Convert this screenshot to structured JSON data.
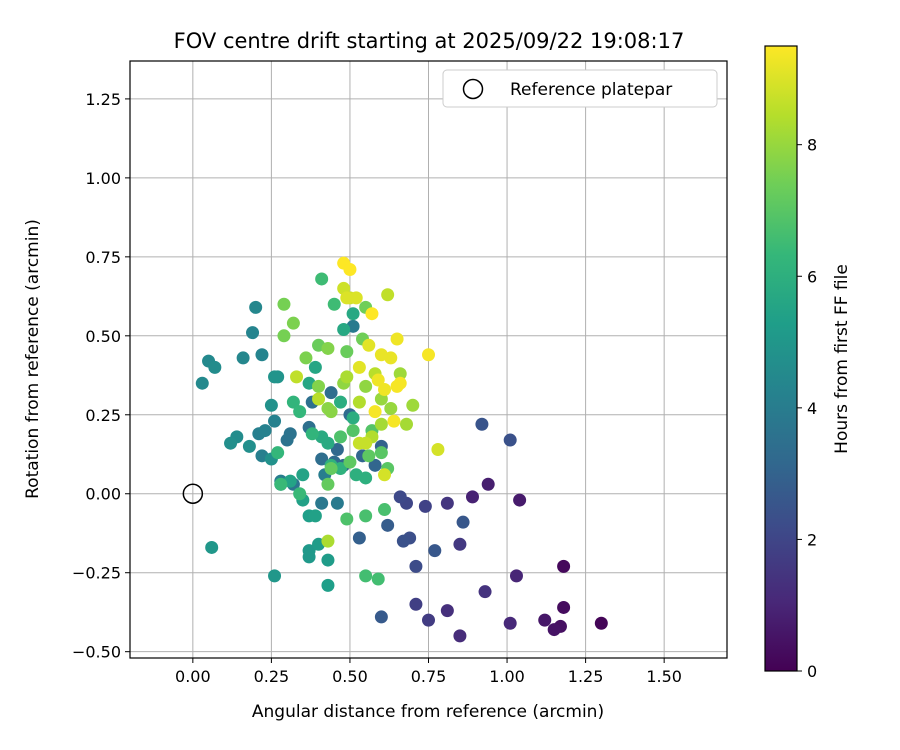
{
  "chart_data": {
    "type": "scatter",
    "title": "FOV centre drift starting at 2025/09/22 19:08:17",
    "xlabel": "Angular distance from reference (arcmin)",
    "ylabel": "Rotation from reference (arcmin)",
    "xlim": [
      -0.2,
      1.7
    ],
    "ylim": [
      -0.52,
      1.37
    ],
    "xticks": [
      0.0,
      0.25,
      0.5,
      0.75,
      1.0,
      1.25,
      1.5
    ],
    "xtick_labels": [
      "0.00",
      "0.25",
      "0.50",
      "0.75",
      "1.00",
      "1.25",
      "1.50"
    ],
    "yticks": [
      -0.5,
      -0.25,
      0.0,
      0.25,
      0.5,
      0.75,
      1.0,
      1.25
    ],
    "ytick_labels": [
      "−0.50",
      "−0.25",
      "0.00",
      "0.25",
      "0.50",
      "0.75",
      "1.00",
      "1.25"
    ],
    "grid": true,
    "legend": {
      "position": "top-right",
      "label": "Reference platepar",
      "marker": "open-circle"
    },
    "reference_point": {
      "x": 0.0,
      "y": 0.0
    },
    "colorbar": {
      "label": "Hours from first FF file",
      "min": 0,
      "max": 9.5,
      "ticks": [
        0,
        2,
        4,
        6,
        8
      ],
      "tick_labels": [
        "0",
        "2",
        "4",
        "6",
        "8"
      ],
      "colormap": "viridis",
      "colors": [
        "#440154",
        "#482878",
        "#3e4989",
        "#31688e",
        "#26828e",
        "#1f9e89",
        "#35b779",
        "#6ece58",
        "#b5de2b",
        "#fde725"
      ]
    },
    "points": [
      {
        "x": 1.3,
        "y": -0.41,
        "h": 0.1
      },
      {
        "x": 1.18,
        "y": -0.23,
        "h": 0.2
      },
      {
        "x": 1.18,
        "y": -0.36,
        "h": 0.3
      },
      {
        "x": 1.17,
        "y": -0.42,
        "h": 0.4
      },
      {
        "x": 1.15,
        "y": -0.43,
        "h": 0.5
      },
      {
        "x": 1.12,
        "y": -0.4,
        "h": 0.6
      },
      {
        "x": 1.04,
        "y": -0.02,
        "h": 0.7
      },
      {
        "x": 0.94,
        "y": 0.03,
        "h": 0.8
      },
      {
        "x": 0.89,
        "y": -0.01,
        "h": 0.9
      },
      {
        "x": 1.03,
        "y": -0.26,
        "h": 1.0
      },
      {
        "x": 1.01,
        "y": -0.41,
        "h": 1.1
      },
      {
        "x": 0.85,
        "y": -0.45,
        "h": 1.2
      },
      {
        "x": 0.81,
        "y": -0.37,
        "h": 1.3
      },
      {
        "x": 0.93,
        "y": -0.31,
        "h": 1.4
      },
      {
        "x": 0.81,
        "y": -0.03,
        "h": 1.5
      },
      {
        "x": 0.85,
        "y": -0.16,
        "h": 1.6
      },
      {
        "x": 0.75,
        "y": -0.4,
        "h": 1.7
      },
      {
        "x": 0.71,
        "y": -0.35,
        "h": 1.8
      },
      {
        "x": 0.74,
        "y": -0.04,
        "h": 1.9
      },
      {
        "x": 0.68,
        "y": -0.03,
        "h": 2.0
      },
      {
        "x": 0.66,
        "y": -0.01,
        "h": 2.1
      },
      {
        "x": 0.71,
        "y": -0.23,
        "h": 2.2
      },
      {
        "x": 0.69,
        "y": -0.14,
        "h": 2.3
      },
      {
        "x": 0.67,
        "y": -0.15,
        "h": 2.4
      },
      {
        "x": 1.01,
        "y": 0.17,
        "h": 2.4
      },
      {
        "x": 0.92,
        "y": 0.22,
        "h": 2.5
      },
      {
        "x": 0.86,
        "y": -0.09,
        "h": 2.6
      },
      {
        "x": 0.77,
        "y": -0.18,
        "h": 2.6
      },
      {
        "x": 0.6,
        "y": -0.39,
        "h": 2.7
      },
      {
        "x": 0.62,
        "y": -0.1,
        "h": 2.8
      },
      {
        "x": 0.53,
        "y": -0.14,
        "h": 2.9
      },
      {
        "x": 0.6,
        "y": 0.15,
        "h": 3.0
      },
      {
        "x": 0.58,
        "y": 0.09,
        "h": 3.1
      },
      {
        "x": 0.54,
        "y": 0.12,
        "h": 3.1
      },
      {
        "x": 0.48,
        "y": 0.09,
        "h": 3.2
      },
      {
        "x": 0.46,
        "y": 0.14,
        "h": 3.2
      },
      {
        "x": 0.5,
        "y": 0.25,
        "h": 3.3
      },
      {
        "x": 0.45,
        "y": 0.1,
        "h": 3.3
      },
      {
        "x": 0.44,
        "y": 0.32,
        "h": 3.4
      },
      {
        "x": 0.41,
        "y": 0.11,
        "h": 3.4
      },
      {
        "x": 0.38,
        "y": 0.29,
        "h": 3.5
      },
      {
        "x": 0.37,
        "y": 0.21,
        "h": 3.5
      },
      {
        "x": 0.3,
        "y": 0.17,
        "h": 3.6
      },
      {
        "x": 0.31,
        "y": 0.19,
        "h": 3.6
      },
      {
        "x": 0.28,
        "y": 0.03,
        "h": 3.7
      },
      {
        "x": 0.32,
        "y": 0.03,
        "h": 3.7
      },
      {
        "x": 0.41,
        "y": -0.03,
        "h": 3.8
      },
      {
        "x": 0.46,
        "y": -0.03,
        "h": 3.9
      },
      {
        "x": 0.51,
        "y": 0.53,
        "h": 3.9
      },
      {
        "x": 0.42,
        "y": 0.06,
        "h": 4.0
      },
      {
        "x": 0.28,
        "y": 0.04,
        "h": 4.0
      },
      {
        "x": 0.22,
        "y": 0.12,
        "h": 4.1
      },
      {
        "x": 0.21,
        "y": 0.19,
        "h": 4.1
      },
      {
        "x": 0.23,
        "y": 0.2,
        "h": 4.2
      },
      {
        "x": 0.26,
        "y": 0.23,
        "h": 4.2
      },
      {
        "x": 0.22,
        "y": 0.44,
        "h": 4.3
      },
      {
        "x": 0.19,
        "y": 0.51,
        "h": 4.3
      },
      {
        "x": 0.2,
        "y": 0.59,
        "h": 4.4
      },
      {
        "x": 0.16,
        "y": 0.43,
        "h": 4.4
      },
      {
        "x": 0.05,
        "y": 0.42,
        "h": 4.5
      },
      {
        "x": 0.03,
        "y": 0.35,
        "h": 4.5
      },
      {
        "x": 0.07,
        "y": 0.4,
        "h": 4.6
      },
      {
        "x": 0.14,
        "y": 0.18,
        "h": 4.6
      },
      {
        "x": 0.12,
        "y": 0.16,
        "h": 4.7
      },
      {
        "x": 0.18,
        "y": 0.15,
        "h": 4.7
      },
      {
        "x": 0.25,
        "y": 0.11,
        "h": 4.8
      },
      {
        "x": 0.25,
        "y": 0.28,
        "h": 4.8
      },
      {
        "x": 0.27,
        "y": 0.37,
        "h": 4.9
      },
      {
        "x": 0.26,
        "y": 0.37,
        "h": 4.9
      },
      {
        "x": 0.06,
        "y": -0.17,
        "h": 5.0
      },
      {
        "x": 0.26,
        "y": -0.26,
        "h": 5.0
      },
      {
        "x": 0.37,
        "y": -0.18,
        "h": 5.1
      },
      {
        "x": 0.37,
        "y": -0.2,
        "h": 5.1
      },
      {
        "x": 0.4,
        "y": -0.16,
        "h": 5.2
      },
      {
        "x": 0.43,
        "y": -0.21,
        "h": 5.2
      },
      {
        "x": 0.43,
        "y": -0.29,
        "h": 5.3
      },
      {
        "x": 0.37,
        "y": -0.07,
        "h": 5.3
      },
      {
        "x": 0.39,
        "y": -0.07,
        "h": 5.4
      },
      {
        "x": 0.35,
        "y": -0.02,
        "h": 5.4
      },
      {
        "x": 0.35,
        "y": 0.06,
        "h": 5.5
      },
      {
        "x": 0.31,
        "y": 0.04,
        "h": 5.5
      },
      {
        "x": 0.39,
        "y": 0.4,
        "h": 5.6
      },
      {
        "x": 0.37,
        "y": 0.35,
        "h": 5.6
      },
      {
        "x": 0.48,
        "y": 0.52,
        "h": 5.7
      },
      {
        "x": 0.51,
        "y": 0.57,
        "h": 5.7
      },
      {
        "x": 0.41,
        "y": 0.18,
        "h": 5.8
      },
      {
        "x": 0.43,
        "y": 0.16,
        "h": 5.8
      },
      {
        "x": 0.47,
        "y": 0.29,
        "h": 5.9
      },
      {
        "x": 0.51,
        "y": 0.24,
        "h": 5.9
      },
      {
        "x": 0.55,
        "y": 0.05,
        "h": 6.0
      },
      {
        "x": 0.52,
        "y": 0.06,
        "h": 6.0
      },
      {
        "x": 0.47,
        "y": 0.08,
        "h": 6.1
      },
      {
        "x": 0.44,
        "y": 0.09,
        "h": 6.1
      },
      {
        "x": 0.38,
        "y": 0.19,
        "h": 6.2
      },
      {
        "x": 0.32,
        "y": 0.29,
        "h": 6.2
      },
      {
        "x": 0.34,
        "y": 0.26,
        "h": 6.3
      },
      {
        "x": 0.27,
        "y": 0.13,
        "h": 6.3
      },
      {
        "x": 0.28,
        "y": 0.03,
        "h": 6.4
      },
      {
        "x": 0.34,
        "y": 0.0,
        "h": 6.4
      },
      {
        "x": 0.41,
        "y": 0.68,
        "h": 6.5
      },
      {
        "x": 0.45,
        "y": 0.6,
        "h": 6.5
      },
      {
        "x": 0.55,
        "y": -0.26,
        "h": 6.6
      },
      {
        "x": 0.59,
        "y": -0.27,
        "h": 6.6
      },
      {
        "x": 0.61,
        "y": -0.05,
        "h": 6.7
      },
      {
        "x": 0.55,
        "y": -0.07,
        "h": 6.7
      },
      {
        "x": 0.49,
        "y": -0.08,
        "h": 6.8
      },
      {
        "x": 0.47,
        "y": 0.18,
        "h": 6.8
      },
      {
        "x": 0.51,
        "y": 0.2,
        "h": 6.9
      },
      {
        "x": 0.57,
        "y": 0.2,
        "h": 6.9
      },
      {
        "x": 0.62,
        "y": 0.08,
        "h": 7.0
      },
      {
        "x": 0.6,
        "y": 0.13,
        "h": 7.0
      },
      {
        "x": 0.56,
        "y": 0.12,
        "h": 7.1
      },
      {
        "x": 0.5,
        "y": 0.1,
        "h": 7.1
      },
      {
        "x": 0.44,
        "y": 0.08,
        "h": 7.2
      },
      {
        "x": 0.43,
        "y": 0.03,
        "h": 7.2
      },
      {
        "x": 0.4,
        "y": 0.47,
        "h": 7.3
      },
      {
        "x": 0.49,
        "y": 0.45,
        "h": 7.3
      },
      {
        "x": 0.54,
        "y": 0.49,
        "h": 7.4
      },
      {
        "x": 0.55,
        "y": 0.59,
        "h": 7.4
      },
      {
        "x": 0.29,
        "y": 0.6,
        "h": 7.5
      },
      {
        "x": 0.29,
        "y": 0.5,
        "h": 7.5
      },
      {
        "x": 0.32,
        "y": 0.54,
        "h": 7.6
      },
      {
        "x": 0.36,
        "y": 0.43,
        "h": 7.6
      },
      {
        "x": 0.43,
        "y": 0.46,
        "h": 7.7
      },
      {
        "x": 0.4,
        "y": 0.34,
        "h": 7.7
      },
      {
        "x": 0.44,
        "y": 0.26,
        "h": 7.8
      },
      {
        "x": 0.43,
        "y": 0.27,
        "h": 7.8
      },
      {
        "x": 0.48,
        "y": 0.35,
        "h": 7.9
      },
      {
        "x": 0.55,
        "y": 0.34,
        "h": 7.9
      },
      {
        "x": 0.6,
        "y": 0.3,
        "h": 8.0
      },
      {
        "x": 0.63,
        "y": 0.27,
        "h": 8.0
      },
      {
        "x": 0.66,
        "y": 0.38,
        "h": 8.1
      },
      {
        "x": 0.7,
        "y": 0.28,
        "h": 8.1
      },
      {
        "x": 0.68,
        "y": 0.22,
        "h": 8.2
      },
      {
        "x": 0.6,
        "y": 0.22,
        "h": 8.2
      },
      {
        "x": 0.43,
        "y": -0.15,
        "h": 8.3
      },
      {
        "x": 0.49,
        "y": 0.37,
        "h": 8.3
      },
      {
        "x": 0.53,
        "y": 0.29,
        "h": 8.4
      },
      {
        "x": 0.57,
        "y": 0.18,
        "h": 8.4
      },
      {
        "x": 0.58,
        "y": 0.38,
        "h": 8.5
      },
      {
        "x": 0.4,
        "y": 0.3,
        "h": 8.5
      },
      {
        "x": 0.33,
        "y": 0.37,
        "h": 8.6
      },
      {
        "x": 0.62,
        "y": 0.63,
        "h": 8.6
      },
      {
        "x": 0.53,
        "y": 0.16,
        "h": 8.7
      },
      {
        "x": 0.55,
        "y": 0.16,
        "h": 8.7
      },
      {
        "x": 0.5,
        "y": 0.62,
        "h": 8.8
      },
      {
        "x": 0.48,
        "y": 0.65,
        "h": 8.8
      },
      {
        "x": 0.78,
        "y": 0.14,
        "h": 8.9
      },
      {
        "x": 0.61,
        "y": 0.06,
        "h": 8.9
      },
      {
        "x": 0.52,
        "y": 0.62,
        "h": 9.0
      },
      {
        "x": 0.49,
        "y": 0.62,
        "h": 9.0
      },
      {
        "x": 0.56,
        "y": 0.47,
        "h": 9.1
      },
      {
        "x": 0.53,
        "y": 0.4,
        "h": 9.1
      },
      {
        "x": 0.63,
        "y": 0.43,
        "h": 9.2
      },
      {
        "x": 0.6,
        "y": 0.44,
        "h": 9.2
      },
      {
        "x": 0.65,
        "y": 0.49,
        "h": 9.3
      },
      {
        "x": 0.59,
        "y": 0.36,
        "h": 9.3
      },
      {
        "x": 0.61,
        "y": 0.33,
        "h": 9.3
      },
      {
        "x": 0.66,
        "y": 0.35,
        "h": 9.4
      },
      {
        "x": 0.65,
        "y": 0.34,
        "h": 9.4
      },
      {
        "x": 0.58,
        "y": 0.26,
        "h": 9.4
      },
      {
        "x": 0.64,
        "y": 0.23,
        "h": 9.4
      },
      {
        "x": 0.75,
        "y": 0.44,
        "h": 9.4
      },
      {
        "x": 0.57,
        "y": 0.57,
        "h": 9.5
      },
      {
        "x": 0.48,
        "y": 0.73,
        "h": 9.5
      },
      {
        "x": 0.5,
        "y": 0.71,
        "h": 9.5
      }
    ]
  }
}
